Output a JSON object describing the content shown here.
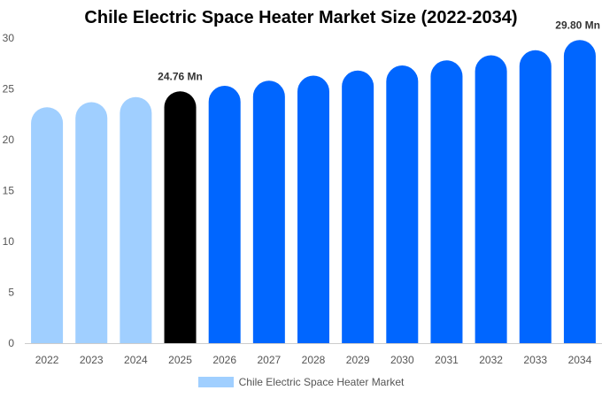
{
  "chart_data": {
    "type": "bar",
    "title": "Chile Electric Space Heater Market Size (2022-2034)",
    "categories": [
      "2022",
      "2023",
      "2024",
      "2025",
      "2026",
      "2027",
      "2028",
      "2029",
      "2030",
      "2031",
      "2032",
      "2033",
      "2034"
    ],
    "series": [
      {
        "name": "Chile Electric Space Heater Market",
        "values": [
          23.2,
          23.7,
          24.2,
          24.76,
          25.3,
          25.8,
          26.3,
          26.8,
          27.3,
          27.8,
          28.3,
          28.8,
          29.8
        ]
      }
    ],
    "bar_colors": [
      "#a0cfff",
      "#a0cfff",
      "#a0cfff",
      "#000000",
      "#0066ff",
      "#0066ff",
      "#0066ff",
      "#0066ff",
      "#0066ff",
      "#0066ff",
      "#0066ff",
      "#0066ff",
      "#0066ff"
    ],
    "legend_color": "#a0cfff",
    "data_labels": [
      {
        "index": 3,
        "text": "24.76 Mn"
      },
      {
        "index": 12,
        "text": "29.80 Mn"
      }
    ],
    "yticks": [
      0,
      5,
      10,
      15,
      20,
      25,
      30
    ],
    "ylim": [
      0,
      30
    ],
    "grid": false,
    "legend_position": "bottom"
  }
}
